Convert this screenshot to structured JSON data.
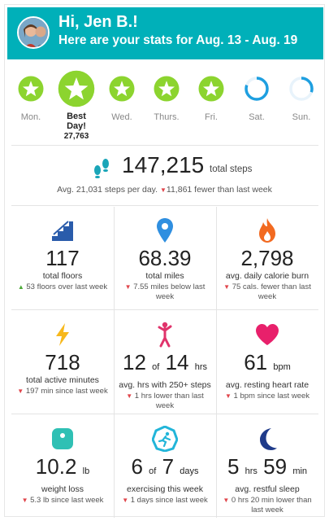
{
  "header": {
    "greeting": "Hi, Jen B.!",
    "subtitle": "Here are your stats for Aug. 13 - Aug. 19",
    "bg_color": "#00b0b9"
  },
  "week": {
    "days": [
      {
        "label": "Mon.",
        "status": "goal-met"
      },
      {
        "label": "Best Day!",
        "value": "27,763",
        "status": "best-day"
      },
      {
        "label": "Wed.",
        "status": "goal-met"
      },
      {
        "label": "Thurs.",
        "status": "goal-met"
      },
      {
        "label": "Fri.",
        "status": "goal-met"
      },
      {
        "label": "Sat.",
        "status": "partial",
        "progress": 0.8
      },
      {
        "label": "Sun.",
        "status": "partial",
        "progress": 0.3
      }
    ],
    "goal_color": "#8cd42f",
    "ring_color": "#1e9fe0"
  },
  "steps": {
    "icon": "footprints-icon",
    "total": "147,215",
    "unit": "total steps",
    "avg": "Avg. 21,031 steps per day.",
    "change": "11,861 fewer than last week"
  },
  "stats": [
    {
      "icon": "stairs-icon",
      "value": "117",
      "label": "total floors",
      "direction": "up",
      "change": "53 floors over last week"
    },
    {
      "icon": "location-pin-icon",
      "value": "68.39",
      "label": "total miles",
      "direction": "down",
      "change": "7.55 miles below last week"
    },
    {
      "icon": "flame-icon",
      "value": "2,798",
      "label": "avg. daily calorie burn",
      "direction": "down",
      "change": "75 cals. fewer than last week"
    },
    {
      "icon": "lightning-bolt-icon",
      "value": "718",
      "label": "total active minutes",
      "direction": "down",
      "change": "197 min since last week"
    },
    {
      "icon": "person-walking-icon",
      "value": "12",
      "of": "of",
      "value2": "14",
      "unit": "hrs",
      "label": "avg. hrs with 250+ steps",
      "direction": "down",
      "change": "1 hrs lower than last week"
    },
    {
      "icon": "heart-icon",
      "value": "61",
      "unit": "bpm",
      "label": "avg. resting heart rate",
      "direction": "down",
      "change": "1 bpm since last week"
    },
    {
      "icon": "scale-icon",
      "value": "10.2",
      "unit": "lb",
      "label": "weight loss",
      "direction": "down",
      "change": "5.3 lb since last week"
    },
    {
      "icon": "exercise-badge-icon",
      "value": "6",
      "of": "of",
      "value2": "7",
      "unit": "days",
      "label": "exercising this week",
      "direction": "down",
      "change": "1 days since last week"
    },
    {
      "icon": "moon-icon",
      "value": "5",
      "unit": "hrs",
      "value2": "59",
      "unit2": "min",
      "label": "avg. restful sleep",
      "direction": "down",
      "change": "0 hrs 20 min lower than last week"
    }
  ]
}
